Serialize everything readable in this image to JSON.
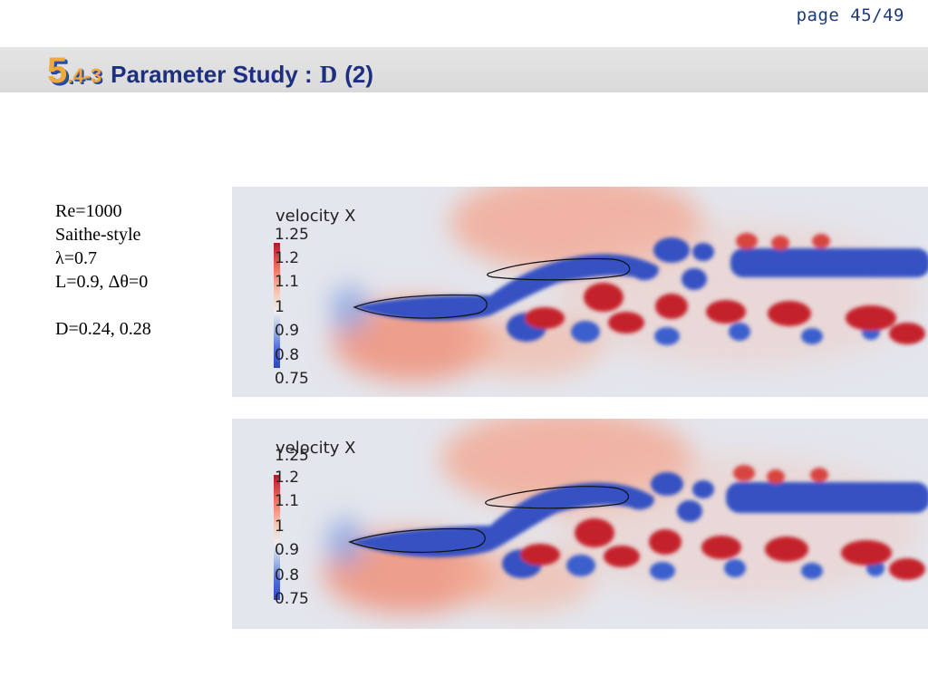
{
  "page": "page 45/49",
  "title": {
    "number": "5",
    "subnumber": ".4-3",
    "text": "Parameter Study :",
    "symbol": "D",
    "tail": "(2)"
  },
  "params": {
    "line1": "Re=1000",
    "line2": "Saithe-style",
    "line3": "λ=0.7",
    "line4": "L=0.9, Δθ=0",
    "line5": "D=0.24, 0.28"
  },
  "plots": [
    {
      "label": "velocity X",
      "ticks": [
        "1.25",
        "1.2",
        "1.1",
        "1",
        "0.9",
        "0.8",
        "0.75"
      ]
    },
    {
      "label": "velocity X",
      "ticks": [
        "1.25",
        "1.2",
        "1.1",
        "1",
        "0.9",
        "0.8",
        "0.75"
      ]
    }
  ],
  "colors": {
    "title_blue": "#1d2f80",
    "title_orange": "#f0a83a",
    "high": "#b2182b",
    "low": "#2c4bb8",
    "neutral": "#e6e8ee"
  }
}
